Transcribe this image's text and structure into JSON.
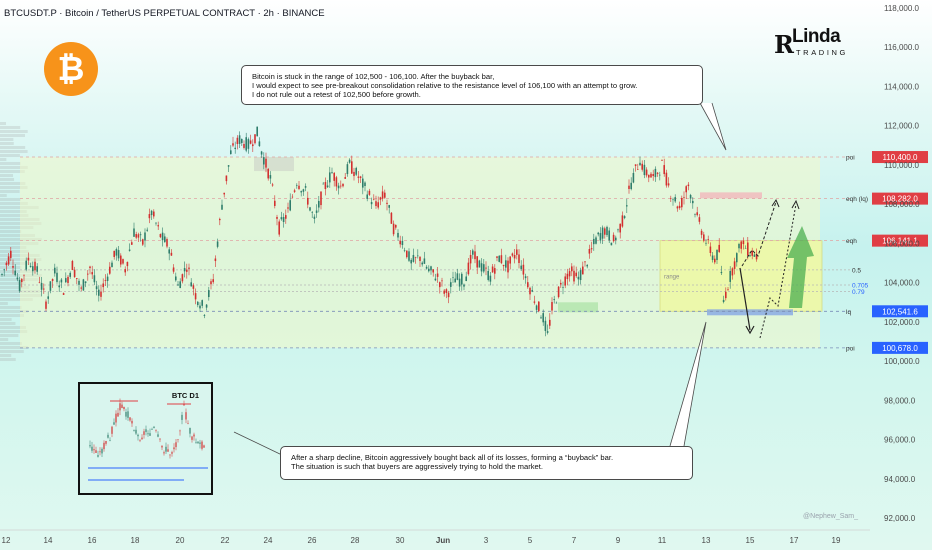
{
  "header": {
    "title": "BTCUSDT.P · Bitcoin / TetherUS PERPETUAL CONTRACT · 2h · BINANCE"
  },
  "brand": {
    "logo_text": "Linda",
    "logo_sub": "TRADING",
    "mark": "R"
  },
  "coin_icon": "bitcoin-icon",
  "colors": {
    "candle_up": "#2e7d6b",
    "candle_down": "#d32f2f",
    "range_fill": "#f0f9a0",
    "level_red": "#e03e44",
    "level_blue": "#2962ff",
    "green_arrow": "#4caf50"
  },
  "callouts": {
    "top": {
      "line1": "Bitcoin is stuck in the range of 102,500 - 106,100. After the buyback bar,",
      "line2": "I would expect to see pre-breakout consolidation relative to the resistance level of 106,100 with an attempt to grow.",
      "line3": "I do not rule out a retest of 102,500 before growth."
    },
    "bottom": {
      "line1": "After a sharp decline, Bitcoin aggressively bought back all of its losses, forming a “buyback” bar.",
      "line2": "The situation is such that buyers are aggressively trying to hold the market."
    }
  },
  "inset": {
    "title": "BTC D1"
  },
  "watermark": "@Nephew_Sam_",
  "chart_data": {
    "type": "candlestick",
    "title": "BTCUSDT.P · Bitcoin / TetherUS PERPETUAL CONTRACT · 2h · BINANCE",
    "xlabel": "",
    "ylabel": "",
    "ylim": [
      91400,
      118400
    ],
    "y_ticks": [
      "118,000.0",
      "116,000.0",
      "114,000.0",
      "112,000.0",
      "110,000.0",
      "108,000.0",
      "106,000.0",
      "104,000.0",
      "102,000.0",
      "100,000.0",
      "98,000.0",
      "96,000.0",
      "94,000.0",
      "92,000.0"
    ],
    "x_ticks": [
      "12",
      "14",
      "16",
      "18",
      "20",
      "22",
      "24",
      "26",
      "28",
      "30",
      "Jun",
      "3",
      "5",
      "7",
      "9",
      "11",
      "13",
      "15",
      "17",
      "19"
    ],
    "price_path": [
      [
        0,
        104400
      ],
      [
        4,
        105500
      ],
      [
        8,
        103800
      ],
      [
        12,
        105200
      ],
      [
        16,
        104600
      ],
      [
        20,
        103000
      ],
      [
        24,
        104500
      ],
      [
        28,
        103700
      ],
      [
        32,
        104900
      ],
      [
        36,
        103600
      ],
      [
        40,
        104800
      ],
      [
        44,
        103300
      ],
      [
        48,
        104400
      ],
      [
        52,
        105600
      ],
      [
        56,
        104700
      ],
      [
        60,
        106600
      ],
      [
        64,
        106000
      ],
      [
        68,
        107600
      ],
      [
        72,
        106400
      ],
      [
        76,
        105800
      ],
      [
        80,
        103800
      ],
      [
        84,
        104900
      ],
      [
        88,
        103400
      ],
      [
        92,
        102600
      ],
      [
        96,
        104200
      ],
      [
        100,
        108000
      ],
      [
        104,
        110600
      ],
      [
        108,
        111300
      ],
      [
        112,
        111000
      ],
      [
        116,
        111600
      ],
      [
        118,
        110700
      ],
      [
        122,
        109300
      ],
      [
        126,
        106800
      ],
      [
        130,
        107600
      ],
      [
        134,
        109200
      ],
      [
        138,
        108600
      ],
      [
        142,
        107100
      ],
      [
        146,
        108700
      ],
      [
        150,
        109600
      ],
      [
        154,
        108900
      ],
      [
        158,
        110000
      ],
      [
        162,
        109400
      ],
      [
        166,
        108600
      ],
      [
        170,
        107900
      ],
      [
        174,
        108500
      ],
      [
        178,
        106800
      ],
      [
        182,
        106100
      ],
      [
        186,
        105000
      ],
      [
        190,
        105300
      ],
      [
        194,
        104600
      ],
      [
        198,
        104300
      ],
      [
        202,
        103400
      ],
      [
        206,
        104200
      ],
      [
        210,
        104100
      ],
      [
        214,
        105400
      ],
      [
        218,
        104800
      ],
      [
        222,
        104300
      ],
      [
        226,
        105300
      ],
      [
        230,
        104800
      ],
      [
        234,
        105600
      ],
      [
        238,
        104300
      ],
      [
        242,
        103200
      ],
      [
        246,
        102200
      ],
      [
        248,
        101300
      ],
      [
        250,
        102700
      ],
      [
        254,
        103800
      ],
      [
        258,
        104600
      ],
      [
        262,
        104200
      ],
      [
        266,
        105100
      ],
      [
        270,
        106200
      ],
      [
        274,
        106700
      ],
      [
        278,
        106100
      ],
      [
        282,
        107100
      ],
      [
        286,
        109100
      ],
      [
        290,
        110300
      ],
      [
        292,
        109700
      ],
      [
        296,
        109300
      ],
      [
        300,
        110000
      ],
      [
        304,
        108600
      ],
      [
        308,
        107800
      ],
      [
        312,
        109000
      ],
      [
        316,
        107300
      ],
      [
        320,
        106100
      ],
      [
        324,
        105200
      ],
      [
        326,
        105600
      ],
      [
        328,
        103100
      ],
      [
        332,
        104700
      ],
      [
        336,
        106000
      ],
      [
        340,
        105600
      ],
      [
        344,
        105300
      ]
    ],
    "levels": [
      {
        "label": "poi",
        "value": 110400,
        "box": "110,400.0",
        "color": "#e03e44"
      },
      {
        "label": "eqh (lq)",
        "value": 108282,
        "box": "108,282.0",
        "color": "#e03e44"
      },
      {
        "label": "eqh",
        "value": 106141,
        "box": "106,141.1",
        "color": "#e03e44"
      },
      {
        "label": "0.5",
        "value": 104650
      },
      {
        "label": "0.705",
        "value": 103880
      },
      {
        "label": "0.79",
        "value": 103550
      },
      {
        "label": "lq",
        "value": 102541.6,
        "box": "102,541.6",
        "color": "#2962ff"
      },
      {
        "label": "poi",
        "value": 100678,
        "box": "100,678.0",
        "color": "#2962ff"
      }
    ],
    "range_box": {
      "label": "range",
      "top": 106141,
      "bottom": 102541
    },
    "annotations": [
      "range"
    ]
  }
}
